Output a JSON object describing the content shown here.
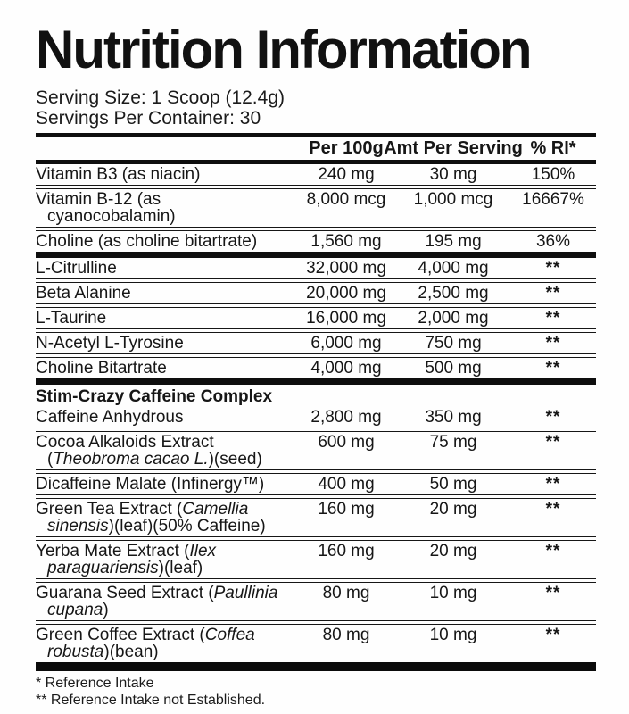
{
  "title": "Nutrition Information",
  "serving_info": {
    "serving_size": "Serving Size: 1 Scoop (12.4g)",
    "servings_per_container": "Servings Per Container: 30"
  },
  "table": {
    "columns": [
      "Per 100g",
      "Amt Per Serving",
      "% RI*"
    ],
    "sections": [
      {
        "rows": [
          {
            "name": [
              {
                "text": "Vitamin B3 (as niacin)"
              }
            ],
            "per_100g": "240 mg",
            "amt_per_serving": "30 mg",
            "ri": "150%"
          },
          {
            "name": [
              {
                "text": "Vitamin B-12 (as"
              },
              {
                "text": "cyanocobalamin)",
                "break_before": true
              }
            ],
            "per_100g": "8,000 mcg",
            "amt_per_serving": "1,000 mcg",
            "ri": "16667%"
          },
          {
            "name": [
              {
                "text": "Choline (as choline bitartrate)"
              }
            ],
            "per_100g": "1,560 mg",
            "amt_per_serving": "195 mg",
            "ri": "36%"
          }
        ]
      },
      {
        "rows": [
          {
            "name": [
              {
                "text": "L-Citrulline"
              }
            ],
            "per_100g": "32,000 mg",
            "amt_per_serving": "4,000 mg",
            "ri": "**"
          },
          {
            "name": [
              {
                "text": "Beta Alanine"
              }
            ],
            "per_100g": "20,000 mg",
            "amt_per_serving": "2,500 mg",
            "ri": "**"
          },
          {
            "name": [
              {
                "text": "L-Taurine"
              }
            ],
            "per_100g": "16,000 mg",
            "amt_per_serving": "2,000 mg",
            "ri": "**"
          },
          {
            "name": [
              {
                "text": "N-Acetyl L-Tyrosine"
              }
            ],
            "per_100g": "6,000 mg",
            "amt_per_serving": "750 mg",
            "ri": "**"
          },
          {
            "name": [
              {
                "text": "Choline Bitartrate"
              }
            ],
            "per_100g": "4,000 mg",
            "amt_per_serving": "500 mg",
            "ri": "**"
          }
        ]
      },
      {
        "heading": "Stim-Crazy Caffeine Complex",
        "rows": [
          {
            "name": [
              {
                "text": "Caffeine Anhydrous"
              }
            ],
            "per_100g": "2,800 mg",
            "amt_per_serving": "350 mg",
            "ri": "**"
          },
          {
            "name": [
              {
                "text": "Cocoa Alkaloids Extract"
              },
              {
                "text": "(",
                "break_before": true
              },
              {
                "text": "Theobroma cacao L.",
                "italic": true
              },
              {
                "text": ")(seed)"
              }
            ],
            "per_100g": "600 mg",
            "amt_per_serving": "75 mg",
            "ri": "**"
          },
          {
            "name": [
              {
                "text": "Dicaffeine Malate (Infinergy™)"
              }
            ],
            "per_100g": "400 mg",
            "amt_per_serving": "50 mg",
            "ri": "**"
          },
          {
            "name": [
              {
                "text": "Green Tea Extract ("
              },
              {
                "text": "Camellia",
                "italic": true
              },
              {
                "text": "sinensis",
                "italic": true,
                "break_before": true
              },
              {
                "text": ")(leaf)(50% Caffeine)"
              }
            ],
            "per_100g": "160 mg",
            "amt_per_serving": "20 mg",
            "ri": "**"
          },
          {
            "name": [
              {
                "text": "Yerba Mate Extract ("
              },
              {
                "text": "Ilex",
                "italic": true
              },
              {
                "text": "paraguariensis",
                "italic": true,
                "break_before": true
              },
              {
                "text": ")(leaf)"
              }
            ],
            "per_100g": "160 mg",
            "amt_per_serving": "20 mg",
            "ri": "**"
          },
          {
            "name": [
              {
                "text": "Guarana Seed Extract ("
              },
              {
                "text": "Paullinia",
                "italic": true
              },
              {
                "text": "cupana",
                "italic": true,
                "break_before": true
              },
              {
                "text": ")"
              }
            ],
            "per_100g": "80 mg",
            "amt_per_serving": "10 mg",
            "ri": "**"
          },
          {
            "name": [
              {
                "text": "Green Coffee Extract ("
              },
              {
                "text": "Coffea",
                "italic": true
              },
              {
                "text": "robusta",
                "italic": true,
                "break_before": true
              },
              {
                "text": ")(bean)"
              }
            ],
            "per_100g": "80 mg",
            "amt_per_serving": "10 mg",
            "ri": "**"
          }
        ]
      }
    ]
  },
  "footnotes": [
    "* Reference Intake",
    "** Reference Intake not Established."
  ]
}
